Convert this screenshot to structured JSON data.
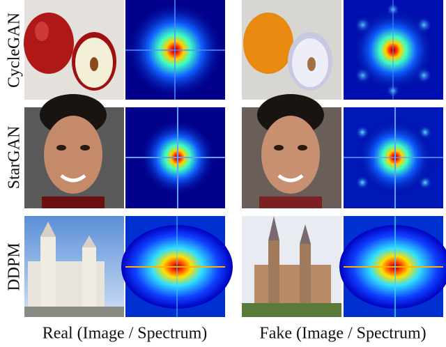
{
  "row_labels": [
    "CycleGAN",
    "StarGAN",
    "DDPM"
  ],
  "column_labels": [
    "Real (Image / Spectrum)",
    "Fake (Image / Spectrum)"
  ]
}
